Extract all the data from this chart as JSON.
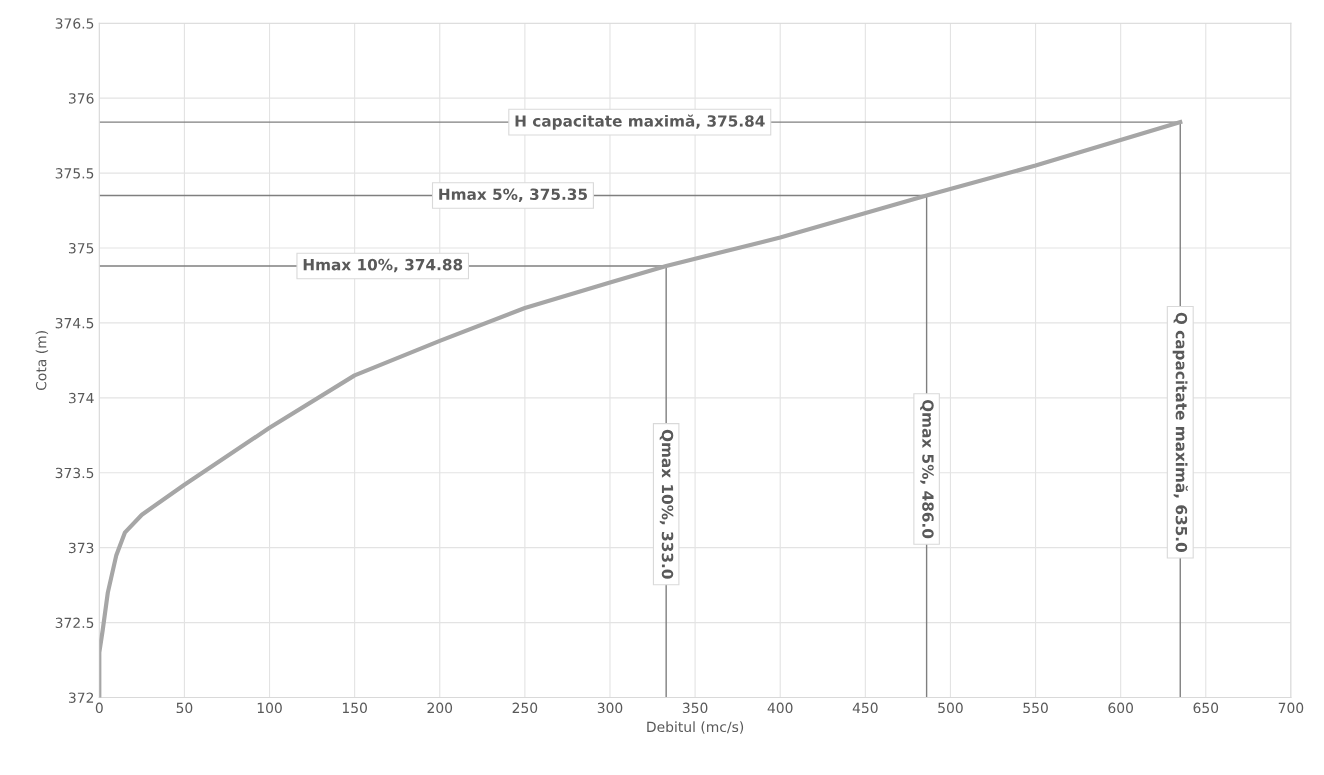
{
  "chart_data": {
    "type": "line",
    "xlabel": "Debitul (mc/s)",
    "ylabel": "Cota (m)",
    "xlim": [
      0,
      700
    ],
    "xticks": [
      0,
      50,
      100,
      150,
      200,
      250,
      300,
      350,
      400,
      450,
      500,
      550,
      600,
      650,
      700
    ],
    "ylim": [
      372,
      376.5
    ],
    "yticks": [
      372,
      {
        "value": 372.5,
        "label": "372.5"
      },
      373,
      {
        "value": 373.5,
        "label": "373.5"
      },
      374,
      {
        "value": 374.5,
        "label": "374.5"
      },
      375,
      {
        "value": 375.5,
        "label": "375.5"
      },
      376,
      {
        "value": 376.5,
        "label": "376.5"
      }
    ],
    "grid": true,
    "marker": "none",
    "line_style": "solid",
    "series": [
      {
        "color": "#a6a6a6",
        "x": [
          0,
          0,
          2,
          5,
          10,
          15,
          25,
          50,
          100,
          150,
          200,
          250,
          300,
          333,
          400,
          486,
          550,
          635
        ],
        "values": [
          372,
          372.3,
          372.45,
          372.7,
          372.95,
          373.1,
          373.22,
          373.42,
          373.8,
          374.15,
          374.38,
          374.6,
          374.77,
          374.88,
          375.07,
          375.35,
          375.55,
          375.84
        ]
      }
    ],
    "ref_lines": [
      {
        "axis": "y",
        "value": 375.84,
        "label": "H capacitate maximă, 375.84",
        "color": "#7f7f7f"
      },
      {
        "axis": "y",
        "value": 375.35,
        "label": "Hmax 5%, 375.35",
        "color": "#7f7f7f"
      },
      {
        "axis": "y",
        "value": 374.88,
        "label": "Hmax 10%, 374.88",
        "color": "#7f7f7f"
      },
      {
        "axis": "x",
        "value": 333.0,
        "label": "Qmax 10%, 333.0",
        "color": "#7f7f7f"
      },
      {
        "axis": "x",
        "value": 486.0,
        "label": "Qmax 5%, 486.0",
        "color": "#7f7f7f"
      },
      {
        "axis": "x",
        "value": 635.0,
        "label": "Q capacitate maximă, 635.0",
        "color": "#7f7f7f"
      }
    ]
  }
}
